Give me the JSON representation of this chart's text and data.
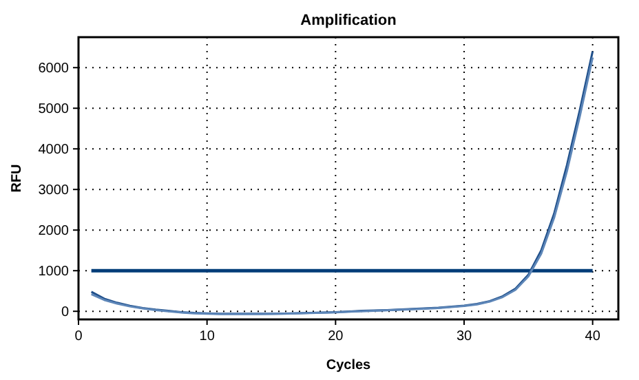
{
  "chart_data": {
    "type": "line",
    "title": "Amplification",
    "xlabel": "Cycles",
    "ylabel": "RFU",
    "x": [
      1,
      2,
      3,
      4,
      5,
      6,
      7,
      8,
      9,
      10,
      11,
      12,
      13,
      14,
      15,
      16,
      18,
      20,
      22,
      24,
      26,
      28,
      30,
      31,
      32,
      33,
      34,
      35,
      36,
      37,
      38,
      39,
      40
    ],
    "series": [
      {
        "color": "#1f4f8a",
        "values": [
          480,
          310,
          210,
          135,
          80,
          40,
          10,
          -20,
          -40,
          -50,
          -60,
          -60,
          -60,
          -60,
          -60,
          -55,
          -40,
          -20,
          10,
          30,
          60,
          90,
          140,
          180,
          250,
          370,
          560,
          900,
          1500,
          2400,
          3600,
          4950,
          6400
        ]
      },
      {
        "color": "#5d86b8",
        "values": [
          420,
          280,
          190,
          120,
          70,
          30,
          0,
          -30,
          -50,
          -60,
          -70,
          -70,
          -70,
          -70,
          -65,
          -60,
          -45,
          -25,
          0,
          25,
          50,
          80,
          130,
          170,
          240,
          350,
          530,
          860,
          1420,
          2300,
          3450,
          4800,
          6250
        ]
      }
    ],
    "xlim": [
      0,
      42
    ],
    "ylim": [
      -200,
      6750
    ],
    "xticks": [
      0,
      10,
      20,
      30,
      40
    ],
    "yticks": [
      0,
      1000,
      2000,
      3000,
      4000,
      5000,
      6000
    ],
    "grid": true,
    "line_style": "solid",
    "marker": "none",
    "ref_lines": [
      {
        "axis": "y",
        "value": 1000,
        "color": "#003c78"
      }
    ]
  }
}
